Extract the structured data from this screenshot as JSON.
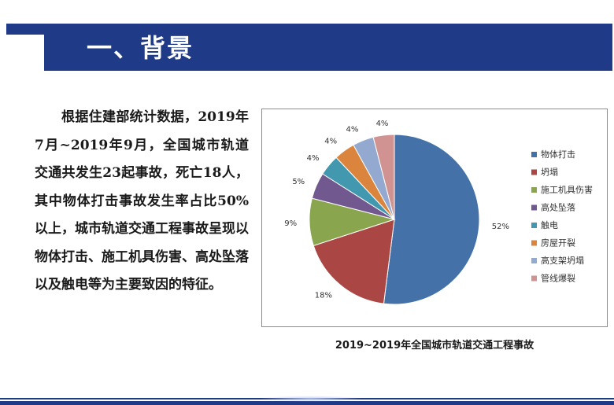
{
  "header": {
    "title": "一、背景"
  },
  "body_text": "根据住建部统计数据，2019年7月~2019年9月，全国城市轨道交通共发生23起事故，死亡18人，其中物体打击事故发生率占比50%以上，城市轨道交通工程事故呈现以物体打击、施工机具伤害、高处坠落以及触电等为主要致因的特征。",
  "chart_data": {
    "type": "pie",
    "title": "2019~2019年全国城市轨道交通工程事故",
    "legend_position": "right",
    "categories": [
      "物体打击",
      "坍塌",
      "施工机具伤害",
      "高处坠落",
      "触电",
      "房屋开裂",
      "高支架坍塌",
      "管线爆裂"
    ],
    "values": [
      52,
      18,
      9,
      5,
      4,
      4,
      4,
      4
    ],
    "labels": [
      "52%",
      "18%",
      "9%",
      "5%",
      "4%",
      "4%",
      "4%",
      "4%"
    ],
    "colors": [
      "#4472a8",
      "#aa4643",
      "#89a54e",
      "#71588f",
      "#4198af",
      "#db843d",
      "#93a9cf",
      "#d19392"
    ]
  },
  "colors": {
    "header_bar": "#1f3a86",
    "header_text": "#ffffff"
  }
}
